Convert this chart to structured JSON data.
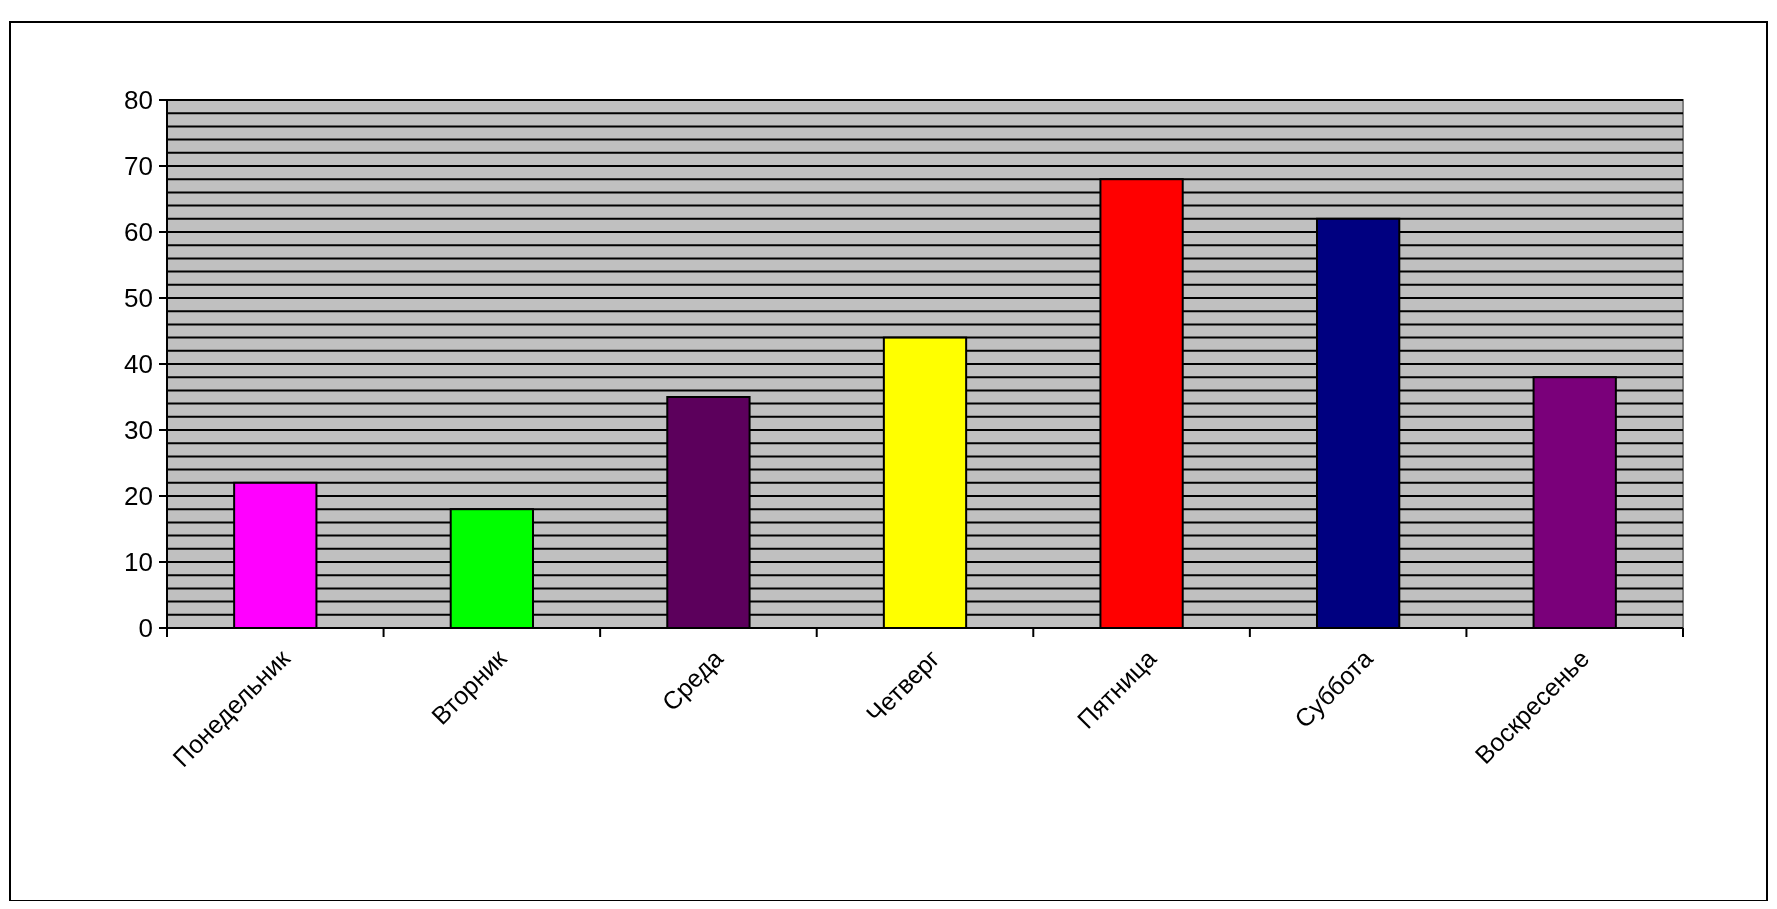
{
  "chart_data": {
    "type": "bar",
    "categories": [
      "Понедельник",
      "Вторник",
      "Среда",
      "Четверг",
      "Пятница",
      "Суббота",
      "Воскресенье"
    ],
    "values": [
      22,
      18,
      35,
      44,
      68,
      62,
      38
    ],
    "colors": [
      "#ff00ff",
      "#00ff00",
      "#5c005c",
      "#ffff00",
      "#ff0000",
      "#000080",
      "#7a007a"
    ],
    "ylim": [
      0,
      80
    ],
    "yticks": [
      0,
      {
        "value": 2,
        "label": null
      },
      {
        "value": 4,
        "label": null
      },
      {
        "value": 6,
        "label": null
      },
      {
        "value": 8,
        "label": null
      },
      10,
      {
        "value": 12,
        "label": null
      },
      {
        "value": 14,
        "label": null
      },
      {
        "value": 16,
        "label": null
      },
      {
        "value": 18,
        "label": null
      },
      20,
      {
        "value": 22,
        "label": null
      },
      {
        "value": 24,
        "label": null
      },
      {
        "value": 26,
        "label": null
      },
      {
        "value": 28,
        "label": null
      },
      30,
      {
        "value": 32,
        "label": null
      },
      {
        "value": 34,
        "label": null
      },
      {
        "value": 36,
        "label": null
      },
      {
        "value": 38,
        "label": null
      },
      40,
      {
        "value": 42,
        "label": null
      },
      {
        "value": 44,
        "label": null
      },
      {
        "value": 46,
        "label": null
      },
      {
        "value": 48,
        "label": null
      },
      50,
      {
        "value": 52,
        "label": null
      },
      {
        "value": 54,
        "label": null
      },
      {
        "value": 56,
        "label": null
      },
      {
        "value": 58,
        "label": null
      },
      60,
      {
        "value": 62,
        "label": null
      },
      {
        "value": 64,
        "label": null
      },
      {
        "value": 66,
        "label": null
      },
      {
        "value": 68,
        "label": null
      },
      70,
      {
        "value": 72,
        "label": null
      },
      {
        "value": 74,
        "label": null
      },
      {
        "value": 76,
        "label": null
      },
      {
        "value": 78,
        "label": null
      },
      80
    ],
    "grid": "y"
  }
}
